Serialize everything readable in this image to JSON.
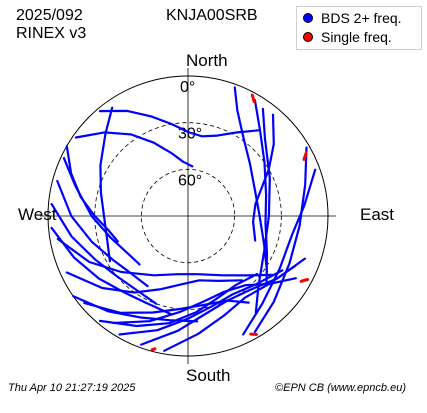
{
  "header": {
    "date": "2025/092",
    "format": "RINEX v3",
    "station": "KNJA00SRB"
  },
  "legend": {
    "items": [
      {
        "label": "BDS 2+ freq.",
        "color": "#0000ff"
      },
      {
        "label": "Single freq.",
        "color": "#ff0000"
      }
    ]
  },
  "footer": {
    "timestamp": "Thu Apr 10 21:27:19 2025",
    "credit": "©EPN CB (www.epncb.eu)"
  },
  "chart_data": {
    "type": "scatter",
    "projection": "polar-skyplot",
    "directions": {
      "north": "North",
      "south": "South",
      "east": "East",
      "west": "West"
    },
    "elevation_ticks": [
      "0°",
      "30°",
      "60°"
    ],
    "elevation_rings_deg": [
      0,
      30,
      60
    ],
    "series": [
      {
        "name": "BDS 2+ freq.",
        "color": "#0000ff",
        "tracks": [
          [
            [
              -40,
              2
            ],
            [
              -30,
              12
            ],
            [
              -20,
              22
            ],
            [
              -10,
              30
            ],
            [
              0,
              36
            ],
            [
              10,
              38
            ],
            [
              20,
              35
            ],
            [
              30,
              28
            ],
            [
              40,
              18
            ]
          ],
          [
            [
              -55,
              2
            ],
            [
              -45,
              14
            ],
            [
              -35,
              26
            ],
            [
              -25,
              38
            ],
            [
              -15,
              48
            ],
            [
              -5,
              55
            ],
            [
              5,
              58
            ]
          ],
          [
            [
              -60,
              0
            ],
            [
              -70,
              10
            ],
            [
              -80,
              20
            ],
            [
              -90,
              30
            ],
            [
              -100,
              38
            ],
            [
              -110,
              42
            ]
          ],
          [
            [
              -35,
              5
            ],
            [
              -45,
              15
            ],
            [
              -60,
              25
            ],
            [
              -75,
              32
            ],
            [
              -90,
              36
            ],
            [
              -105,
              36
            ],
            [
              -120,
              32
            ]
          ],
          [
            [
              -65,
              2
            ],
            [
              -75,
              15
            ],
            [
              -90,
              28
            ],
            [
              -105,
              38
            ],
            [
              -120,
              44
            ],
            [
              -135,
              46
            ]
          ],
          [
            [
              -75,
              3
            ],
            [
              -90,
              15
            ],
            [
              -105,
              26
            ],
            [
              -120,
              34
            ],
            [
              -135,
              38
            ],
            [
              -150,
              38
            ]
          ],
          [
            [
              -85,
              2
            ],
            [
              -100,
              14
            ],
            [
              -115,
              24
            ],
            [
              -130,
              30
            ],
            [
              -145,
              32
            ],
            [
              -160,
              30
            ]
          ],
          [
            [
              -95,
              2
            ],
            [
              -110,
              12
            ],
            [
              -125,
              20
            ],
            [
              -140,
              26
            ],
            [
              -155,
              28
            ],
            [
              -170,
              26
            ]
          ],
          [
            [
              -125,
              0
            ],
            [
              -140,
              10
            ],
            [
              -155,
              18
            ],
            [
              -170,
              22
            ],
            [
              175,
              22
            ]
          ],
          [
            [
              40,
              5
            ],
            [
              50,
              18
            ],
            [
              60,
              30
            ],
            [
              70,
              40
            ],
            [
              80,
              46
            ],
            [
              95,
              48
            ],
            [
              110,
              44
            ]
          ],
          [
            [
              20,
              2
            ],
            [
              25,
              15
            ],
            [
              35,
              28
            ],
            [
              50,
              38
            ],
            [
              70,
              44
            ],
            [
              90,
              44
            ],
            [
              110,
              38
            ],
            [
              125,
              28
            ]
          ],
          [
            [
              30,
              4
            ],
            [
              40,
              18
            ],
            [
              55,
              30
            ],
            [
              75,
              38
            ],
            [
              95,
              40
            ],
            [
              115,
              34
            ],
            [
              130,
              24
            ]
          ],
          [
            [
              35,
              6
            ],
            [
              45,
              20
            ],
            [
              65,
              32
            ],
            [
              90,
              38
            ],
            [
              115,
              36
            ],
            [
              135,
              26
            ],
            [
              145,
              14
            ]
          ],
          [
            [
              60,
              2
            ],
            [
              75,
              12
            ],
            [
              95,
              18
            ],
            [
              115,
              18
            ],
            [
              135,
              12
            ],
            [
              150,
              4
            ]
          ],
          [
            [
              70,
              3
            ],
            [
              85,
              15
            ],
            [
              100,
              22
            ],
            [
              120,
              22
            ],
            [
              140,
              16
            ],
            [
              155,
              6
            ]
          ],
          [
            [
              -140,
              2
            ],
            [
              -155,
              12
            ],
            [
              -170,
              20
            ],
            [
              175,
              28
            ],
            [
              160,
              34
            ],
            [
              145,
              36
            ],
            [
              130,
              32
            ]
          ],
          [
            [
              -150,
              2
            ],
            [
              -165,
              14
            ],
            [
              180,
              24
            ],
            [
              165,
              30
            ],
            [
              150,
              32
            ],
            [
              135,
              28
            ],
            [
              120,
              20
            ]
          ],
          [
            [
              -160,
              2
            ],
            [
              -175,
              16
            ],
            [
              170,
              26
            ],
            [
              155,
              30
            ],
            [
              140,
              28
            ],
            [
              125,
              20
            ],
            [
              110,
              10
            ]
          ],
          [
            [
              -170,
              2
            ],
            [
              175,
              14
            ],
            [
              160,
              22
            ],
            [
              145,
              26
            ],
            [
              130,
              22
            ],
            [
              115,
              14
            ]
          ],
          [
            [
              -115,
              4
            ],
            [
              -130,
              18
            ],
            [
              -145,
              30
            ],
            [
              -160,
              40
            ],
            [
              -175,
              46
            ],
            [
              170,
              48
            ],
            [
              155,
              44
            ],
            [
              140,
              36
            ]
          ],
          [
            [
              -100,
              5
            ],
            [
              -115,
              20
            ],
            [
              -130,
              34
            ],
            [
              -150,
              46
            ],
            [
              -170,
              52
            ],
            [
              170,
              52
            ],
            [
              150,
              46
            ],
            [
              135,
              36
            ],
            [
              125,
              24
            ]
          ],
          [
            [
              -130,
              3
            ],
            [
              -145,
              14
            ],
            [
              -160,
              24
            ],
            [
              -175,
              30
            ],
            [
              170,
              32
            ],
            [
              155,
              30
            ],
            [
              145,
              22
            ]
          ],
          [
            [
              -145,
              6
            ],
            [
              -160,
              18
            ],
            [
              -175,
              28
            ],
            [
              170,
              34
            ],
            [
              155,
              36
            ],
            [
              140,
              32
            ],
            [
              130,
              22
            ],
            [
              120,
              10
            ]
          ]
        ]
      },
      {
        "name": "Single freq.",
        "color": "#ff0000",
        "tracks": [
          [
            [
              28,
              2
            ],
            [
              30,
              5
            ]
          ],
          [
            [
              62,
              4
            ],
            [
              64,
              7
            ]
          ],
          [
            [
              118,
              3
            ],
            [
              120,
              6
            ]
          ],
          [
            [
              150,
              2
            ],
            [
              152,
              4
            ]
          ],
          [
            [
              -165,
              1
            ],
            [
              -166,
              2
            ]
          ]
        ]
      }
    ]
  }
}
